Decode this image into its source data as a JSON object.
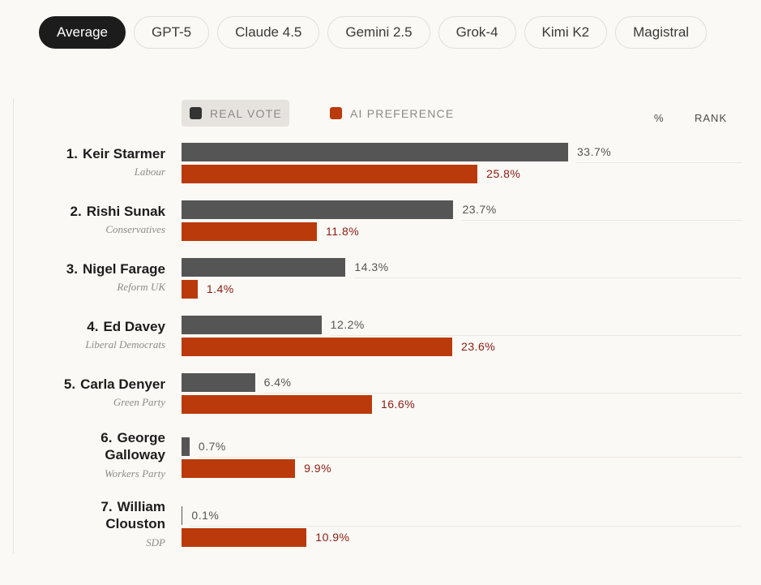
{
  "tabs": [
    "Average",
    "GPT-5",
    "Claude 4.5",
    "Gemini 2.5",
    "Grok-4",
    "Kimi K2",
    "Magistral"
  ],
  "active_tab": 0,
  "legend": {
    "real": "REAL VOTE",
    "ai": "AI PREFERENCE"
  },
  "columns": {
    "pct": "%",
    "rank": "RANK"
  },
  "colors": {
    "real": "#555555",
    "ai": "#bb3a0b",
    "real_label": "#555555",
    "ai_label": "#8b1a10"
  },
  "chart_data": {
    "type": "bar",
    "orientation": "horizontal",
    "categories": [
      {
        "rank": "1.",
        "name": "Keir Starmer",
        "party": "Labour"
      },
      {
        "rank": "2.",
        "name": "Rishi Sunak",
        "party": "Conservatives"
      },
      {
        "rank": "3.",
        "name": "Nigel Farage",
        "party": "Reform UK"
      },
      {
        "rank": "4.",
        "name": "Ed Davey",
        "party": "Liberal Democrats"
      },
      {
        "rank": "5.",
        "name": "Carla Denyer",
        "party": "Green Party"
      },
      {
        "rank": "6.",
        "name": "George Galloway",
        "party": "Workers Party"
      },
      {
        "rank": "7.",
        "name": "William Clouston",
        "party": "SDP"
      }
    ],
    "series": [
      {
        "name": "REAL VOTE",
        "values": [
          33.7,
          23.7,
          14.3,
          12.2,
          6.4,
          0.7,
          0.1
        ],
        "labels": [
          "33.7%",
          "23.7%",
          "14.3%",
          "12.2%",
          "6.4%",
          "0.7%",
          "0.1%"
        ]
      },
      {
        "name": "AI PREFERENCE",
        "values": [
          25.8,
          11.8,
          1.4,
          23.6,
          16.6,
          9.9,
          10.9
        ],
        "labels": [
          "25.8%",
          "11.8%",
          "1.4%",
          "23.6%",
          "16.6%",
          "9.9%",
          "10.9%"
        ]
      }
    ],
    "xlim": [
      0,
      33.7
    ],
    "legend_position": "top-left"
  }
}
